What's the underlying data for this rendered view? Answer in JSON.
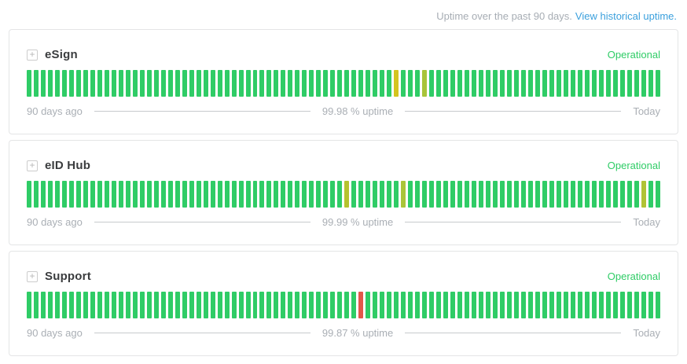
{
  "header": {
    "prefix": "Uptime over the past 90 days.",
    "link": "View historical uptime.",
    "link_color": "#3ba0dd"
  },
  "colors": {
    "operational_green": "#2fcc66",
    "muted_text": "#a7adb4",
    "divider": "#c7cacd",
    "card_border": "#e4e5e6"
  },
  "icons": {
    "expand_glyph": "+"
  },
  "services": [
    {
      "name": "eSign",
      "status": "Operational",
      "left_label": "90 days ago",
      "uptime_label": "99.98 % uptime",
      "right_label": "Today",
      "bars": {
        "total": 90,
        "default_color": "#2fcc66",
        "exceptions": [
          {
            "index": 52,
            "color": "#d4c41f"
          },
          {
            "index": 56,
            "color": "#a8c43a"
          }
        ]
      }
    },
    {
      "name": "eID Hub",
      "status": "Operational",
      "left_label": "90 days ago",
      "uptime_label": "99.99 % uptime",
      "right_label": "Today",
      "bars": {
        "total": 90,
        "default_color": "#2fcc66",
        "exceptions": [
          {
            "index": 45,
            "color": "#b5c22e"
          },
          {
            "index": 53,
            "color": "#a9c539"
          },
          {
            "index": 87,
            "color": "#b0c335"
          }
        ]
      }
    },
    {
      "name": "Support",
      "status": "Operational",
      "left_label": "90 days ago",
      "uptime_label": "99.87 % uptime",
      "right_label": "Today",
      "bars": {
        "total": 90,
        "default_color": "#2fcc66",
        "exceptions": [
          {
            "index": 47,
            "color": "#e2574a"
          }
        ]
      }
    }
  ]
}
